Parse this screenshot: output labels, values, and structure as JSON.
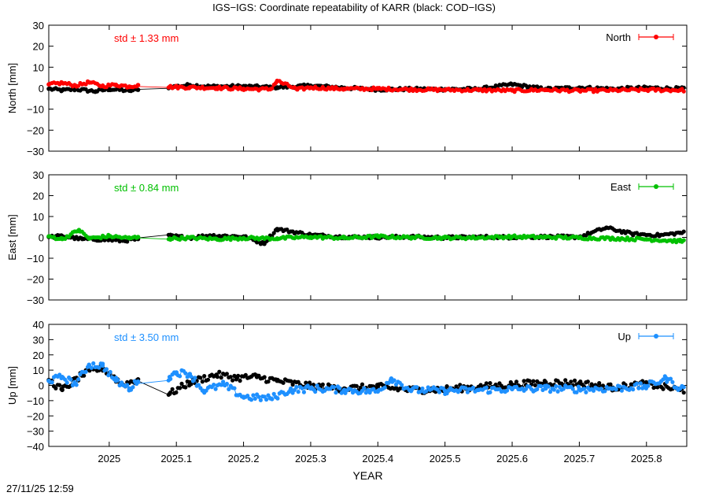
{
  "title": "IGS−IGS: Coordinate repeatability of KARR (black: COD−IGS)",
  "timestamp": "27/11/25 12:59",
  "colors": {
    "black": "#000000",
    "north": "#ff0000",
    "east": "#00c000",
    "up": "#1e90ff"
  },
  "chart_data": {
    "type": "scatter",
    "xlabel": "YEAR",
    "xlim": [
      2024.91,
      2025.86
    ],
    "xticks": [
      2025.0,
      2025.1,
      2025.2,
      2025.3,
      2025.4,
      2025.5,
      2025.6,
      2025.7,
      2025.8
    ],
    "xtick_labels": [
      "2025",
      "2025.1",
      "2025.2",
      "2025.3",
      "2025.4",
      "2025.5",
      "2025.6",
      "2025.7",
      "2025.8"
    ],
    "data_gap": [
      2025.043,
      2025.088
    ],
    "panels": [
      {
        "component": "north",
        "ylabel": "North [mm]",
        "ylim": [
          -30,
          30
        ],
        "yticks": [
          "30",
          "20",
          "10",
          "0",
          "−10",
          "−20",
          "−30"
        ],
        "legend": "North",
        "std_label": "std ± 1.33 mm",
        "color": "#ff0000",
        "series": [
          {
            "name": "IGS−IGS",
            "color": "#ff0000",
            "segments": [
              [
                2024.91,
                1.8
              ],
              [
                2024.93,
                2.5
              ],
              [
                2024.95,
                1.2
              ],
              [
                2024.97,
                2.8
              ],
              [
                2024.99,
                1.0
              ],
              [
                2025.01,
                1.6
              ],
              [
                2025.03,
                0.8
              ],
              [
                2025.043,
                1.5
              ],
              [
                2025.09,
                0.6
              ],
              [
                2025.12,
                0.4
              ],
              [
                2025.16,
                0.2
              ],
              [
                2025.2,
                -0.3
              ],
              [
                2025.24,
                -0.5
              ],
              [
                2025.25,
                3.5
              ],
              [
                2025.28,
                -0.6
              ],
              [
                2025.3,
                0.3
              ],
              [
                2025.35,
                -0.3
              ],
              [
                2025.4,
                -0.3
              ],
              [
                2025.45,
                -0.6
              ],
              [
                2025.5,
                -0.8
              ],
              [
                2025.55,
                -0.9
              ],
              [
                2025.6,
                -1.1
              ],
              [
                2025.65,
                -0.8
              ],
              [
                2025.7,
                -1.2
              ],
              [
                2025.75,
                -1.0
              ],
              [
                2025.8,
                -0.8
              ],
              [
                2025.85,
                -0.9
              ]
            ]
          },
          {
            "name": "COD−IGS",
            "color": "#000000",
            "segments": [
              [
                2024.91,
                -0.3
              ],
              [
                2024.93,
                -1.0
              ],
              [
                2024.95,
                -0.5
              ],
              [
                2024.98,
                -1.5
              ],
              [
                2025.0,
                -0.4
              ],
              [
                2025.03,
                -1.2
              ],
              [
                2025.043,
                -0.8
              ],
              [
                2025.09,
                0.5
              ],
              [
                2025.12,
                1.5
              ],
              [
                2025.15,
                0.8
              ],
              [
                2025.2,
                0.9
              ],
              [
                2025.25,
                0.4
              ],
              [
                2025.3,
                1.2
              ],
              [
                2025.35,
                0.2
              ],
              [
                2025.4,
                -0.6
              ],
              [
                2025.45,
                -0.4
              ],
              [
                2025.5,
                -0.5
              ],
              [
                2025.55,
                -0.4
              ],
              [
                2025.6,
                1.8
              ],
              [
                2025.65,
                -0.4
              ],
              [
                2025.7,
                0.3
              ],
              [
                2025.75,
                -0.3
              ],
              [
                2025.8,
                0.2
              ],
              [
                2025.85,
                -0.2
              ]
            ]
          }
        ]
      },
      {
        "component": "east",
        "ylabel": "East [mm]",
        "ylim": [
          -30,
          30
        ],
        "yticks": [
          "30",
          "20",
          "10",
          "0",
          "−10",
          "−20",
          "−30"
        ],
        "legend": "East",
        "std_label": "std ± 0.84 mm",
        "color": "#00c000",
        "series": [
          {
            "name": "IGS−IGS",
            "color": "#00c000",
            "segments": [
              [
                2024.91,
                0.5
              ],
              [
                2024.93,
                -0.8
              ],
              [
                2024.955,
                3.5
              ],
              [
                2024.97,
                -0.5
              ],
              [
                2025.0,
                0.6
              ],
              [
                2025.03,
                -0.4
              ],
              [
                2025.043,
                0.2
              ],
              [
                2025.09,
                -0.6
              ],
              [
                2025.12,
                -0.2
              ],
              [
                2025.16,
                -0.8
              ],
              [
                2025.2,
                -0.3
              ],
              [
                2025.25,
                -0.5
              ],
              [
                2025.3,
                0.2
              ],
              [
                2025.35,
                -0.3
              ],
              [
                2025.4,
                0.4
              ],
              [
                2025.45,
                0.0
              ],
              [
                2025.5,
                -0.2
              ],
              [
                2025.55,
                -0.1
              ],
              [
                2025.6,
                0.3
              ],
              [
                2025.65,
                0.1
              ],
              [
                2025.7,
                -0.2
              ],
              [
                2025.75,
                -0.5
              ],
              [
                2025.8,
                -0.9
              ],
              [
                2025.85,
                -1.8
              ]
            ]
          },
          {
            "name": "COD−IGS",
            "color": "#000000",
            "segments": [
              [
                2024.91,
                0.2
              ],
              [
                2024.93,
                0.6
              ],
              [
                2024.96,
                -0.8
              ],
              [
                2024.99,
                -1.0
              ],
              [
                2025.02,
                -1.6
              ],
              [
                2025.043,
                -0.8
              ],
              [
                2025.09,
                0.8
              ],
              [
                2025.12,
                -0.2
              ],
              [
                2025.15,
                0.9
              ],
              [
                2025.2,
                0.4
              ],
              [
                2025.23,
                -3.0
              ],
              [
                2025.25,
                4.0
              ],
              [
                2025.3,
                1.2
              ],
              [
                2025.35,
                0.2
              ],
              [
                2025.4,
                0.1
              ],
              [
                2025.45,
                0.3
              ],
              [
                2025.5,
                -0.1
              ],
              [
                2025.55,
                0.2
              ],
              [
                2025.6,
                0.1
              ],
              [
                2025.65,
                0.3
              ],
              [
                2025.7,
                0.2
              ],
              [
                2025.74,
                4.6
              ],
              [
                2025.78,
                1.6
              ],
              [
                2025.82,
                1.0
              ],
              [
                2025.85,
                2.2
              ]
            ]
          }
        ]
      },
      {
        "component": "up",
        "ylabel": "Up [mm]",
        "ylim": [
          -40,
          40
        ],
        "yticks": [
          "40",
          "30",
          "20",
          "10",
          "0",
          "−10",
          "−20",
          "−30",
          "−40"
        ],
        "legend": "Up",
        "std_label": "std ± 3.50 mm",
        "color": "#1e90ff",
        "series": [
          {
            "name": "IGS−IGS",
            "color": "#1e90ff",
            "segments": [
              [
                2024.91,
                3.0
              ],
              [
                2024.93,
                5.5
              ],
              [
                2024.95,
                1.0
              ],
              [
                2024.97,
                13.5
              ],
              [
                2024.99,
                13.0
              ],
              [
                2025.01,
                3.0
              ],
              [
                2025.03,
                -2.0
              ],
              [
                2025.043,
                2.5
              ],
              [
                2025.09,
                5.5
              ],
              [
                2025.1,
                8.5
              ],
              [
                2025.12,
                7.5
              ],
              [
                2025.14,
                -3.5
              ],
              [
                2025.17,
                0.5
              ],
              [
                2025.2,
                -7.5
              ],
              [
                2025.24,
                -8.5
              ],
              [
                2025.27,
                -3.0
              ],
              [
                2025.3,
                -2.0
              ],
              [
                2025.35,
                -3.0
              ],
              [
                2025.4,
                -4.0
              ],
              [
                2025.42,
                4.5
              ],
              [
                2025.45,
                -3.0
              ],
              [
                2025.5,
                -3.5
              ],
              [
                2025.55,
                -3.0
              ],
              [
                2025.6,
                -2.5
              ],
              [
                2025.65,
                -2.0
              ],
              [
                2025.7,
                -2.5
              ],
              [
                2025.75,
                -2.0
              ],
              [
                2025.8,
                -0.5
              ],
              [
                2025.83,
                4.5
              ],
              [
                2025.85,
                -2.0
              ]
            ]
          },
          {
            "name": "COD−IGS",
            "color": "#000000",
            "segments": [
              [
                2024.91,
                3.5
              ],
              [
                2024.93,
                -3.0
              ],
              [
                2024.96,
                7.0
              ],
              [
                2024.99,
                11.5
              ],
              [
                2025.02,
                0.5
              ],
              [
                2025.043,
                4.0
              ],
              [
                2025.09,
                -5.5
              ],
              [
                2025.12,
                2.0
              ],
              [
                2025.16,
                7.0
              ],
              [
                2025.19,
                5.0
              ],
              [
                2025.22,
                5.5
              ],
              [
                2025.25,
                3.0
              ],
              [
                2025.3,
                -0.5
              ],
              [
                2025.35,
                -2.0
              ],
              [
                2025.4,
                -1.0
              ],
              [
                2025.45,
                -3.0
              ],
              [
                2025.5,
                -2.5
              ],
              [
                2025.55,
                -1.0
              ],
              [
                2025.6,
                0.5
              ],
              [
                2025.65,
                2.0
              ],
              [
                2025.7,
                1.5
              ],
              [
                2025.75,
                -1.5
              ],
              [
                2025.8,
                1.0
              ],
              [
                2025.85,
                -3.0
              ]
            ]
          }
        ]
      }
    ]
  }
}
